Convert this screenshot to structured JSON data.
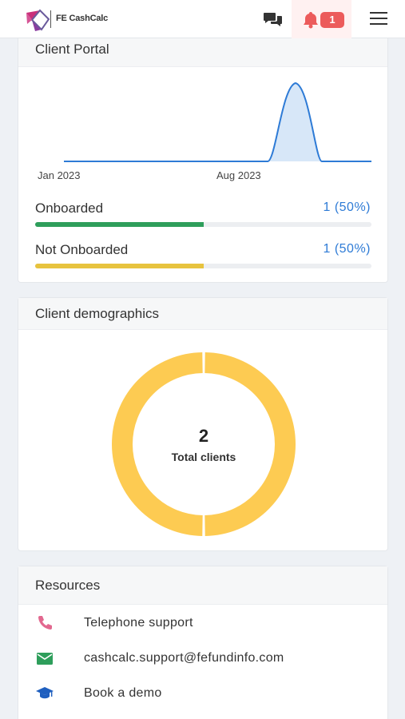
{
  "header": {
    "brand": "FE CashCalc",
    "notification_count": "1",
    "colors": {
      "bell": "#ec5b5b",
      "badge": "#ec5b5b"
    },
    "icons": [
      "logo",
      "chat-icon",
      "bell-icon",
      "menu-icon"
    ]
  },
  "client_portal": {
    "title": "Client Portal",
    "chart_data": {
      "type": "area",
      "x_tick_labels": [
        "Jan 2023",
        "Aug 2023"
      ],
      "color": "#2e7bd6"
    },
    "stats": [
      {
        "label": "Onboarded",
        "value": "1 (50%)",
        "percent": 50,
        "color": "#2e9e5b"
      },
      {
        "label": "Not Onboarded",
        "value": "1 (50%)",
        "percent": 50,
        "color": "#e7c33e"
      }
    ]
  },
  "demographics": {
    "title": "Client demographics",
    "total_count": "2",
    "total_label": "Total clients",
    "chart_data": {
      "type": "pie",
      "total": 2,
      "segments": [
        {
          "value": 1,
          "color": "#fdcb52"
        },
        {
          "value": 1,
          "color": "#fdcb52"
        }
      ]
    }
  },
  "resources": {
    "title": "Resources",
    "items": [
      {
        "label": "Telephone support",
        "icon": "phone-icon",
        "color": "#e2688f"
      },
      {
        "label": "cashcalc.support@fefundinfo.com",
        "icon": "email-icon",
        "color": "#2e9e5b"
      },
      {
        "label": "Book a demo",
        "icon": "graduation-cap-icon",
        "color": "#1f5fbf"
      }
    ]
  }
}
